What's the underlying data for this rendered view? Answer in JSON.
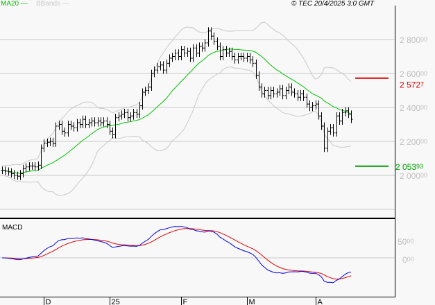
{
  "legend": {
    "ma20": "MA20",
    "bbands": "BBands",
    "ma20_color": "#00c000",
    "bbands_color": "#c8c8c8"
  },
  "copyright": "© TEC 20/4/2025 3:0 GMT",
  "macd_label": "MACD",
  "chart_data": {
    "type": "ohlc",
    "price_ticks": [
      {
        "main": "2 800",
        "frac": "00",
        "value": 2800
      },
      {
        "main": "2 600",
        "frac": "00",
        "value": 2600
      },
      {
        "main": "2 400",
        "frac": "00",
        "value": 2400
      },
      {
        "main": "2 200",
        "frac": "00",
        "value": 2200
      },
      {
        "main": "2 000",
        "frac": "00",
        "value": 2000
      }
    ],
    "price_gridlines": [
      2800,
      2600,
      2400,
      2200,
      2000,
      1800
    ],
    "macd_ticks": [
      {
        "main": "50",
        "frac": "00",
        "value": 50
      },
      {
        "main": "0",
        "frac": "00",
        "value": 0
      }
    ],
    "x_ticks": [
      {
        "label": "D",
        "index": 14
      },
      {
        "label": "25",
        "index": 36
      },
      {
        "label": "F",
        "index": 60
      },
      {
        "label": "M",
        "index": 82
      },
      {
        "label": "A",
        "index": 105
      }
    ],
    "closes": [
      2030,
      2025,
      2020,
      2010,
      2000,
      1995,
      2010,
      2040,
      2050,
      2055,
      2055,
      2050,
      2060,
      2160,
      2190,
      2195,
      2200,
      2190,
      2290,
      2300,
      2260,
      2250,
      2300,
      2290,
      2280,
      2310,
      2300,
      2330,
      2300,
      2310,
      2320,
      2310,
      2320,
      2310,
      2320,
      2300,
      2260,
      2240,
      2340,
      2350,
      2360,
      2370,
      2340,
      2350,
      2370,
      2360,
      2410,
      2490,
      2500,
      2520,
      2600,
      2620,
      2640,
      2650,
      2620,
      2660,
      2690,
      2700,
      2720,
      2700,
      2740,
      2720,
      2730,
      2690,
      2750,
      2720,
      2760,
      2750,
      2780,
      2850,
      2820,
      2790,
      2760,
      2700,
      2740,
      2720,
      2730,
      2700,
      2680,
      2700,
      2700,
      2690,
      2700,
      2680,
      2660,
      2590,
      2520,
      2480,
      2500,
      2470,
      2500,
      2480,
      2490,
      2510,
      2470,
      2500,
      2520,
      2490,
      2480,
      2460,
      2480,
      2460,
      2420,
      2400,
      2410,
      2420,
      2350,
      2290,
      2160,
      2260,
      2280,
      2250,
      2350,
      2320,
      2370,
      2380,
      2360,
      2330
    ],
    "series": [
      {
        "name": "MA20",
        "color": "#00c000"
      },
      {
        "name": "BBands",
        "color": "#c8c8c8"
      },
      {
        "name": "MACD",
        "color": "#0000e0"
      },
      {
        "name": "Signal",
        "color": "#e00000"
      }
    ],
    "markers": [
      {
        "label_main": "2 572",
        "label_frac": "7",
        "value": 2572.7,
        "color": "#e00000"
      },
      {
        "label_main": "2 053",
        "label_frac": "93",
        "value": 2053.93,
        "color": "#00a000"
      }
    ]
  }
}
